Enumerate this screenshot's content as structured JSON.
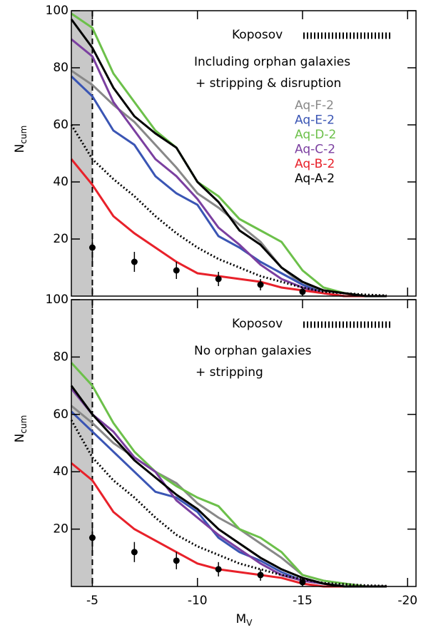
{
  "chart_data": [
    {
      "type": "line",
      "annotations": [
        "Including orphan galaxies",
        "+ stripping & disruption"
      ],
      "ylabel": "N",
      "ylabel_sub": "cum",
      "xlim": [
        -4,
        -20.4
      ],
      "xticks": [
        -5,
        -10,
        -15,
        -20
      ],
      "ylim": [
        0,
        100
      ],
      "yticks": [
        20,
        40,
        60,
        80,
        100
      ],
      "shade": [
        -4,
        -5
      ],
      "vline": -5,
      "x": [
        -4,
        -5,
        -6,
        -7,
        -8,
        -9,
        -10,
        -11,
        -12,
        -13,
        -14,
        -15,
        -16,
        -17,
        -18,
        -19
      ],
      "series": [
        {
          "name": "Aq-F-2",
          "color": "#888888",
          "values": [
            79,
            74,
            67,
            61,
            53,
            45,
            36,
            31,
            25,
            19,
            10,
            4,
            2,
            1,
            0,
            0
          ]
        },
        {
          "name": "Aq-E-2",
          "color": "#3a55b4",
          "values": [
            77,
            70,
            58,
            53,
            42,
            36,
            32,
            21,
            17,
            12,
            8,
            4,
            1,
            0,
            0,
            0
          ]
        },
        {
          "name": "Aq-D-2",
          "color": "#6cc04a",
          "values": [
            99,
            94,
            78,
            68,
            58,
            52,
            40,
            35,
            27,
            23,
            19,
            9,
            3,
            1,
            0,
            0
          ]
        },
        {
          "name": "Aq-C-2",
          "color": "#7b3fa0",
          "values": [
            90,
            84,
            68,
            58,
            48,
            42,
            34,
            24,
            18,
            11,
            6,
            3,
            1,
            0,
            0,
            0
          ]
        },
        {
          "name": "Aq-B-2",
          "color": "#e8212a",
          "values": [
            48,
            39,
            28,
            22,
            17,
            12,
            8,
            7,
            6,
            5,
            3,
            2,
            1,
            0,
            0,
            0
          ]
        },
        {
          "name": "Aq-A-2",
          "color": "#000000",
          "values": [
            97,
            87,
            73,
            63,
            57,
            52,
            40,
            33,
            23,
            18,
            10,
            5,
            2,
            1,
            0,
            0
          ]
        }
      ],
      "model": {
        "name": "Koposov",
        "color": "#000000",
        "values": [
          60,
          48,
          41,
          35,
          28,
          22,
          17,
          13,
          10,
          7,
          5,
          3,
          1.5,
          1,
          0.5,
          0.2
        ]
      },
      "observed": {
        "x": [
          -5,
          -7,
          -9,
          -11,
          -13,
          -15
        ],
        "values": [
          17,
          12,
          9,
          6,
          4,
          1.5
        ],
        "errors": [
          5,
          3.5,
          3,
          2.5,
          2,
          1
        ],
        "color": "#000000"
      }
    },
    {
      "type": "line",
      "annotations": [
        "No orphan galaxies",
        "+ stripping"
      ],
      "ylabel": "N",
      "ylabel_sub": "cum",
      "xlabel": "M",
      "xlabel_sub": "V",
      "xlim": [
        -4,
        -20.4
      ],
      "xticks": [
        -5,
        -10,
        -15,
        -20
      ],
      "ylim": [
        0,
        100
      ],
      "yticks": [
        20,
        40,
        60,
        80,
        100
      ],
      "shade": [
        -4,
        -5
      ],
      "vline": -5,
      "x": [
        -4,
        -5,
        -6,
        -7,
        -8,
        -9,
        -10,
        -11,
        -12,
        -13,
        -14,
        -15,
        -16,
        -17,
        -18,
        -19
      ],
      "series": [
        {
          "color": "#888888",
          "values": [
            63,
            57,
            50,
            45,
            40,
            36,
            29,
            24,
            20,
            15,
            10,
            4,
            2,
            1,
            0,
            0
          ]
        },
        {
          "color": "#3a55b4",
          "values": [
            61,
            54,
            47,
            40,
            33,
            31,
            26,
            17,
            12,
            9,
            5,
            2,
            1,
            0,
            0,
            0
          ]
        },
        {
          "color": "#6cc04a",
          "values": [
            78,
            70,
            57,
            47,
            40,
            35,
            31,
            28,
            20,
            17,
            12,
            4,
            2,
            1,
            0,
            0
          ]
        },
        {
          "color": "#7b3fa0",
          "values": [
            69,
            60,
            54,
            45,
            40,
            30,
            24,
            18,
            13,
            8,
            4,
            2,
            1,
            0,
            0,
            0
          ]
        },
        {
          "color": "#e8212a",
          "values": [
            43,
            37,
            26,
            20,
            16,
            12,
            8,
            6,
            5,
            4,
            3,
            1,
            0,
            0,
            0,
            0
          ]
        },
        {
          "color": "#000000",
          "values": [
            70,
            60,
            52,
            44,
            38,
            32,
            27,
            20,
            15,
            10,
            6,
            3,
            1,
            0,
            0,
            0
          ]
        }
      ],
      "model": {
        "name": "Koposov",
        "color": "#000000",
        "values": [
          58,
          45,
          37,
          31,
          24,
          18,
          14,
          11,
          8,
          6,
          4,
          2.5,
          1.2,
          0.8,
          0.4,
          0.2
        ]
      },
      "observed": {
        "x": [
          -5,
          -7,
          -9,
          -11,
          -13,
          -15
        ],
        "values": [
          17,
          12,
          9,
          6,
          4,
          1.5
        ],
        "errors": [
          5,
          3.5,
          3,
          2.5,
          2,
          1
        ],
        "color": "#000000"
      }
    }
  ]
}
